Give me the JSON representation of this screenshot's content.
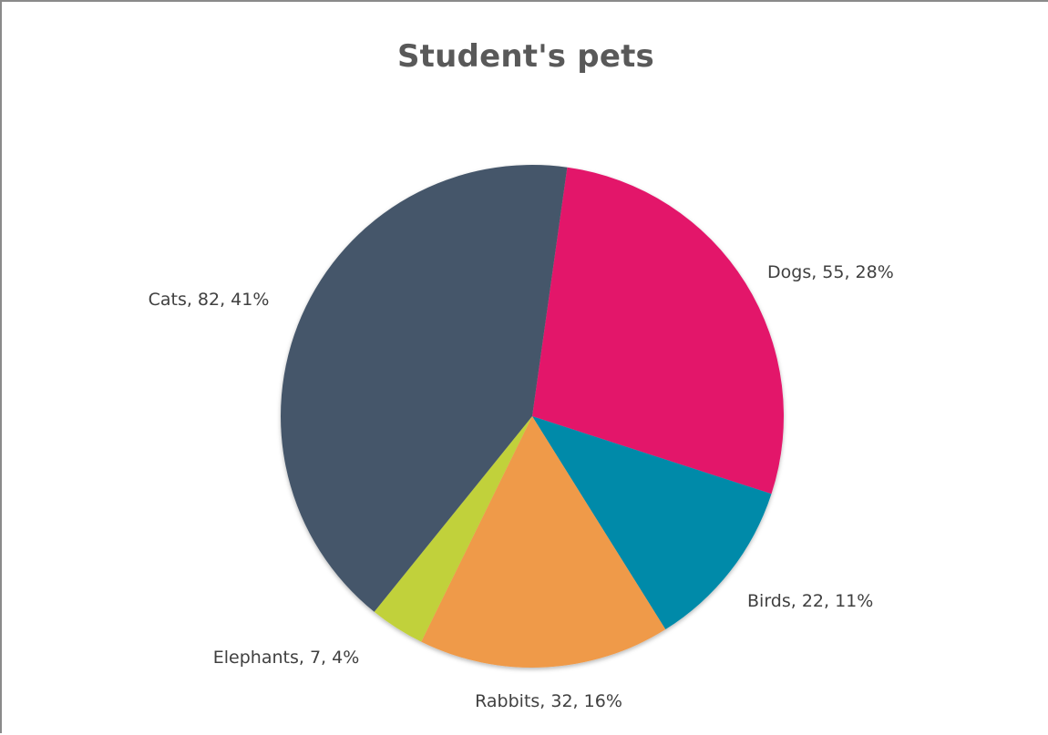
{
  "chart_data": {
    "type": "pie",
    "title": "Student's pets",
    "categories": [
      "Dogs",
      "Birds",
      "Rabbits",
      "Elephants",
      "Cats"
    ],
    "values": [
      55,
      22,
      32,
      7,
      82
    ],
    "percentages": [
      28,
      11,
      16,
      4,
      41
    ],
    "colors": [
      "#e3166b",
      "#008aa9",
      "#ef9a48",
      "#c1d13b",
      "#45576a"
    ],
    "labels": [
      "Dogs, 55, 28%",
      "Birds, 22, 11%",
      "Rabbits, 32, 16%",
      "Elephants, 7, 4%",
      "Cats, 82, 41%"
    ],
    "legend": "none",
    "start_angle_deg": 8
  }
}
